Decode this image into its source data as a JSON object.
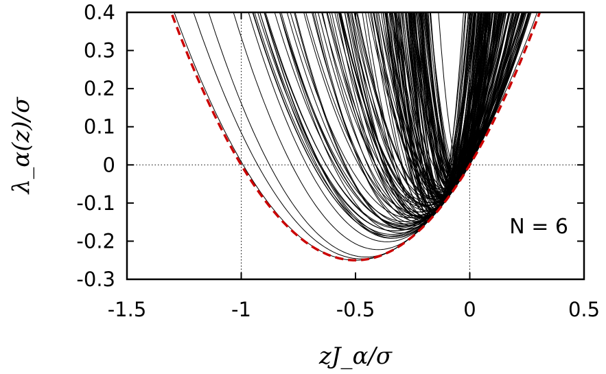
{
  "chart_data": {
    "type": "line",
    "title": "",
    "xlabel": "zJ_α/σ",
    "ylabel": "λ_α(z)/σ",
    "xlim": [
      -1.5,
      0.5
    ],
    "ylim": [
      -0.3,
      0.4
    ],
    "xticks": [
      "-1.5",
      "-1",
      "-0.5",
      "0",
      "0.5"
    ],
    "yticks": [
      "-0.3",
      "-0.2",
      "-0.1",
      "0",
      "0.1",
      "0.2",
      "0.3",
      "0.4"
    ],
    "annotation": "N = 6",
    "reference_lines": {
      "horizontal_y": 0,
      "vertical_x": [
        -1,
        0
      ],
      "style": "dotted"
    },
    "bound_curve": {
      "formula": "y = x^2 + x",
      "color": "#cc0000",
      "style": "dashed",
      "x_range": [
        -1.5,
        0.5
      ],
      "min_point": {
        "x": -0.5,
        "y": -0.25
      }
    },
    "family_curves": {
      "description": "dense family of parabolas, each tangent to the bound curve",
      "color": "#000000",
      "count": 160,
      "representative_minima": [
        {
          "x": -0.52,
          "y": -0.21
        },
        {
          "x": -0.45,
          "y": -0.16
        },
        {
          "x": -0.4,
          "y": -0.145
        },
        {
          "x": -0.3,
          "y": -0.12
        },
        {
          "x": -0.2,
          "y": -0.1
        },
        {
          "x": -0.1,
          "y": -0.07
        }
      ]
    },
    "grid": false,
    "legend": "none"
  }
}
